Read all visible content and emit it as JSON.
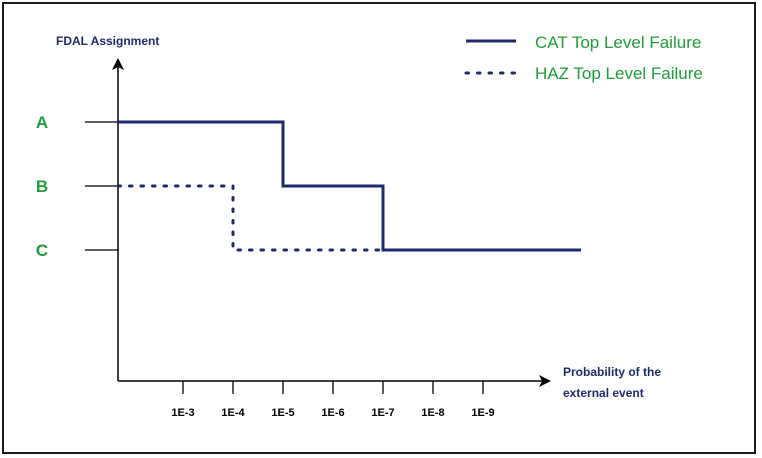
{
  "chart_data": {
    "type": "line",
    "title": "",
    "ylabel": "FDAL Assignment",
    "xlabel_lines": [
      "Probability of the",
      "external event"
    ],
    "y_levels": [
      "A",
      "B",
      "C"
    ],
    "x_ticks": [
      "1E-3",
      "1E-4",
      "1E-5",
      "1E-6",
      "1E-7",
      "1E-8",
      "1E-9"
    ],
    "series": [
      {
        "name": "CAT Top Level Failure",
        "style": "solid",
        "steps": [
          {
            "from": "",
            "to": "1E-5",
            "level": "A"
          },
          {
            "from": "1E-5",
            "to": "1E-7",
            "level": "B"
          },
          {
            "from": "1E-7",
            "to": "",
            "level": "C"
          }
        ]
      },
      {
        "name": "HAZ Top Level Failure",
        "style": "dotted",
        "steps": [
          {
            "from": "",
            "to": "1E-4",
            "level": "B"
          },
          {
            "from": "1E-4",
            "to": "1E-7",
            "level": "C"
          }
        ]
      }
    ],
    "legend_position": "top-right",
    "colors": {
      "series": "#1f2a6b",
      "levels": "#1f9d3a",
      "axis": "#000000"
    }
  }
}
